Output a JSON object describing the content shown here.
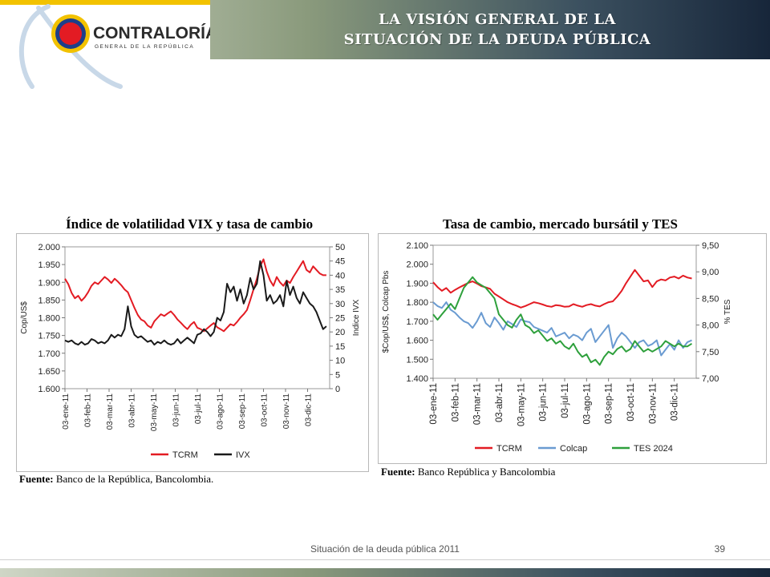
{
  "header": {
    "title_line1": "LA VISIÓN GENERAL DE LA",
    "title_line2": "SITUACIÓN DE LA DEUDA PÚBLICA",
    "logo_name": "CONTRALORÍA",
    "logo_sub": "GENERAL DE LA REPÚBLICA"
  },
  "colors": {
    "red": "#e31b23",
    "black": "#1a1a1a",
    "blue": "#6a9bd1",
    "green": "#2ea03c"
  },
  "footer": {
    "text": "Situación de la deuda pública 2011",
    "page": "39"
  },
  "chart_data": [
    {
      "type": "line",
      "title": "Índice de volatilidad VIX y tasa de cambio",
      "source_label": "Fuente:",
      "source_text": " Banco de la República, Bancolombia.",
      "left_axis": {
        "label": "Cop/US$",
        "min": 1600,
        "max": 2000,
        "ticks": [
          "1.600",
          "1.650",
          "1.700",
          "1.750",
          "1.800",
          "1.850",
          "1.900",
          "1.950",
          "2.000"
        ]
      },
      "right_axis": {
        "label": "Indice IVX",
        "min": 0,
        "max": 50,
        "ticks": [
          "0",
          "5",
          "10",
          "15",
          "20",
          "25",
          "30",
          "35",
          "40",
          "45",
          "50"
        ]
      },
      "x_ticks": [
        "03-ene-11",
        "03-feb-11",
        "03-mar-11",
        "03-abr-11",
        "03-may-11",
        "03-jun-11",
        "03-jul-11",
        "03-ago-11",
        "03-sep-11",
        "03-oct-11",
        "03-nov-11",
        "03-dic-11"
      ],
      "x_range": [
        0,
        12
      ],
      "series": [
        {
          "name": "TCRM",
          "axis": "left",
          "color": "#e31b23",
          "x": [
            0,
            0.15,
            0.3,
            0.45,
            0.6,
            0.75,
            0.9,
            1.05,
            1.2,
            1.35,
            1.5,
            1.65,
            1.8,
            1.95,
            2.1,
            2.25,
            2.4,
            2.55,
            2.7,
            2.85,
            3,
            3.15,
            3.3,
            3.45,
            3.6,
            3.75,
            3.9,
            4.05,
            4.2,
            4.35,
            4.5,
            4.65,
            4.8,
            4.95,
            5.1,
            5.25,
            5.4,
            5.55,
            5.7,
            5.85,
            6,
            6.15,
            6.3,
            6.45,
            6.6,
            6.75,
            6.9,
            7.05,
            7.2,
            7.35,
            7.5,
            7.65,
            7.8,
            7.95,
            8.1,
            8.25,
            8.4,
            8.55,
            8.7,
            8.85,
            9,
            9.15,
            9.3,
            9.45,
            9.6,
            9.75,
            9.9,
            10.05,
            10.2,
            10.35,
            10.5,
            10.65,
            10.8,
            10.95,
            11.1,
            11.25,
            11.4,
            11.55,
            11.7,
            11.85
          ],
          "values": [
            1910,
            1895,
            1870,
            1855,
            1862,
            1848,
            1858,
            1872,
            1890,
            1900,
            1895,
            1905,
            1915,
            1908,
            1898,
            1910,
            1902,
            1892,
            1880,
            1872,
            1850,
            1828,
            1808,
            1795,
            1790,
            1778,
            1772,
            1790,
            1800,
            1810,
            1805,
            1812,
            1818,
            1808,
            1795,
            1786,
            1776,
            1768,
            1780,
            1788,
            1772,
            1768,
            1762,
            1770,
            1778,
            1785,
            1773,
            1768,
            1762,
            1772,
            1782,
            1778,
            1788,
            1800,
            1810,
            1822,
            1850,
            1880,
            1910,
            1945,
            1965,
            1930,
            1905,
            1890,
            1915,
            1900,
            1890,
            1905,
            1898,
            1915,
            1930,
            1945,
            1960,
            1935,
            1928,
            1945,
            1935,
            1925,
            1920,
            1920
          ]
        },
        {
          "name": "IVX",
          "axis": "right",
          "color": "#1a1a1a",
          "x": [
            0,
            0.15,
            0.3,
            0.45,
            0.6,
            0.75,
            0.9,
            1.05,
            1.2,
            1.35,
            1.5,
            1.65,
            1.8,
            1.95,
            2.1,
            2.25,
            2.4,
            2.55,
            2.7,
            2.85,
            3,
            3.15,
            3.3,
            3.45,
            3.6,
            3.75,
            3.9,
            4.05,
            4.2,
            4.35,
            4.5,
            4.65,
            4.8,
            4.95,
            5.1,
            5.25,
            5.4,
            5.55,
            5.7,
            5.85,
            6,
            6.15,
            6.3,
            6.45,
            6.6,
            6.75,
            6.9,
            7.05,
            7.2,
            7.35,
            7.5,
            7.65,
            7.8,
            7.95,
            8.1,
            8.25,
            8.4,
            8.55,
            8.7,
            8.85,
            9,
            9.15,
            9.3,
            9.45,
            9.6,
            9.75,
            9.9,
            10.05,
            10.2,
            10.35,
            10.5,
            10.65,
            10.8,
            10.95,
            11.1,
            11.25,
            11.4,
            11.55,
            11.7,
            11.85
          ],
          "values": [
            17,
            16.5,
            17,
            16,
            15.5,
            16.5,
            15.5,
            16,
            17.5,
            17,
            16,
            16.5,
            16,
            17,
            19,
            18,
            19,
            18.5,
            21,
            29,
            22,
            19,
            18,
            18.5,
            17.5,
            16.5,
            17,
            15.5,
            16.5,
            16,
            17,
            16,
            15.5,
            16,
            17.5,
            16,
            17,
            18,
            17,
            16,
            19,
            19.5,
            21,
            20,
            18.5,
            20,
            25,
            24,
            27,
            37,
            34,
            36,
            31,
            35,
            30,
            33,
            39,
            35,
            37,
            45,
            40,
            31,
            33,
            30,
            31,
            33,
            29,
            38,
            33,
            36,
            32,
            30,
            34,
            32,
            30,
            29,
            27,
            24,
            21,
            22
          ]
        }
      ]
    },
    {
      "type": "line",
      "title": "Tasa de cambio, mercado bursátil y TES",
      "source_label": "Fuente:",
      "source_text": " Banco República y Bancolombia",
      "left_axis": {
        "label": "$Cop/US$, Colcap Pbs",
        "min": 1400,
        "max": 2100,
        "ticks": [
          "1.400",
          "1.500",
          "1.600",
          "1.700",
          "1.800",
          "1.900",
          "2.000",
          "2.100"
        ]
      },
      "right_axis": {
        "label": "% TES",
        "min": 7.0,
        "max": 9.5,
        "ticks": [
          "7,00",
          "7,50",
          "8,00",
          "8,50",
          "9,00",
          "9,50"
        ]
      },
      "x_ticks": [
        "03-ene-11",
        "03-feb-11",
        "03-mar-11",
        "03-abr-11",
        "03-may-11",
        "03-jun-11",
        "03-jul-11",
        "03-ago-11",
        "03-sep-11",
        "03-oct-11",
        "03-nov-11",
        "03-dic-11"
      ],
      "x_range": [
        0,
        12
      ],
      "series": [
        {
          "name": "TCRM",
          "axis": "left",
          "color": "#e31b23",
          "x": [
            0,
            0.2,
            0.4,
            0.6,
            0.8,
            1,
            1.2,
            1.4,
            1.6,
            1.8,
            2,
            2.2,
            2.4,
            2.6,
            2.8,
            3,
            3.2,
            3.4,
            3.6,
            3.8,
            4,
            4.2,
            4.4,
            4.6,
            4.8,
            5,
            5.2,
            5.4,
            5.6,
            5.8,
            6,
            6.2,
            6.4,
            6.6,
            6.8,
            7,
            7.2,
            7.4,
            7.6,
            7.8,
            8,
            8.2,
            8.4,
            8.6,
            8.8,
            9,
            9.2,
            9.4,
            9.6,
            9.8,
            10,
            10.2,
            10.4,
            10.6,
            10.8,
            11,
            11.2,
            11.4,
            11.6,
            11.8
          ],
          "values": [
            1905,
            1880,
            1860,
            1875,
            1850,
            1865,
            1878,
            1890,
            1902,
            1910,
            1898,
            1885,
            1878,
            1870,
            1845,
            1830,
            1815,
            1800,
            1790,
            1782,
            1772,
            1780,
            1790,
            1800,
            1795,
            1788,
            1780,
            1776,
            1785,
            1782,
            1776,
            1778,
            1790,
            1782,
            1776,
            1785,
            1790,
            1782,
            1778,
            1790,
            1800,
            1805,
            1830,
            1860,
            1900,
            1935,
            1970,
            1940,
            1910,
            1915,
            1880,
            1910,
            1920,
            1915,
            1930,
            1935,
            1925,
            1940,
            1930,
            1925
          ]
        },
        {
          "name": "Colcap",
          "axis": "left",
          "color": "#6a9bd1",
          "x": [
            0,
            0.2,
            0.4,
            0.6,
            0.8,
            1,
            1.2,
            1.4,
            1.6,
            1.8,
            2,
            2.2,
            2.4,
            2.6,
            2.8,
            3,
            3.2,
            3.4,
            3.6,
            3.8,
            4,
            4.2,
            4.4,
            4.6,
            4.8,
            5,
            5.2,
            5.4,
            5.6,
            5.8,
            6,
            6.2,
            6.4,
            6.6,
            6.8,
            7,
            7.2,
            7.4,
            7.6,
            7.8,
            8,
            8.2,
            8.4,
            8.6,
            8.8,
            9,
            9.2,
            9.4,
            9.6,
            9.8,
            10,
            10.2,
            10.4,
            10.6,
            10.8,
            11,
            11.2,
            11.4,
            11.6,
            11.8
          ],
          "values": [
            1800,
            1780,
            1770,
            1800,
            1760,
            1745,
            1720,
            1700,
            1690,
            1665,
            1700,
            1745,
            1690,
            1670,
            1720,
            1690,
            1655,
            1700,
            1685,
            1670,
            1710,
            1700,
            1695,
            1670,
            1660,
            1650,
            1640,
            1665,
            1620,
            1630,
            1640,
            1610,
            1630,
            1620,
            1600,
            1640,
            1660,
            1590,
            1620,
            1650,
            1680,
            1560,
            1610,
            1640,
            1620,
            1590,
            1560,
            1590,
            1600,
            1570,
            1580,
            1600,
            1520,
            1550,
            1580,
            1550,
            1600,
            1560,
            1590,
            1600
          ]
        },
        {
          "name": "TES 2024",
          "axis": "right",
          "color": "#2ea03c",
          "x": [
            0,
            0.2,
            0.4,
            0.6,
            0.8,
            1,
            1.2,
            1.4,
            1.6,
            1.8,
            2,
            2.2,
            2.4,
            2.6,
            2.8,
            3,
            3.2,
            3.4,
            3.6,
            3.8,
            4,
            4.2,
            4.4,
            4.6,
            4.8,
            5,
            5.2,
            5.4,
            5.6,
            5.8,
            6,
            6.2,
            6.4,
            6.6,
            6.8,
            7,
            7.2,
            7.4,
            7.6,
            7.8,
            8,
            8.2,
            8.4,
            8.6,
            8.8,
            9,
            9.2,
            9.4,
            9.6,
            9.8,
            10,
            10.2,
            10.4,
            10.6,
            10.8,
            11,
            11.2,
            11.4,
            11.6,
            11.8
          ],
          "values": [
            8.2,
            8.1,
            8.2,
            8.3,
            8.4,
            8.3,
            8.5,
            8.7,
            8.8,
            8.9,
            8.8,
            8.75,
            8.7,
            8.6,
            8.5,
            8.2,
            8.1,
            8.0,
            7.95,
            8.1,
            8.2,
            8.0,
            7.95,
            7.85,
            7.9,
            7.8,
            7.7,
            7.75,
            7.65,
            7.7,
            7.6,
            7.55,
            7.65,
            7.5,
            7.4,
            7.45,
            7.3,
            7.35,
            7.25,
            7.4,
            7.5,
            7.45,
            7.55,
            7.6,
            7.5,
            7.55,
            7.7,
            7.6,
            7.5,
            7.55,
            7.5,
            7.55,
            7.6,
            7.7,
            7.65,
            7.6,
            7.65,
            7.6,
            7.6,
            7.65
          ]
        }
      ]
    }
  ]
}
